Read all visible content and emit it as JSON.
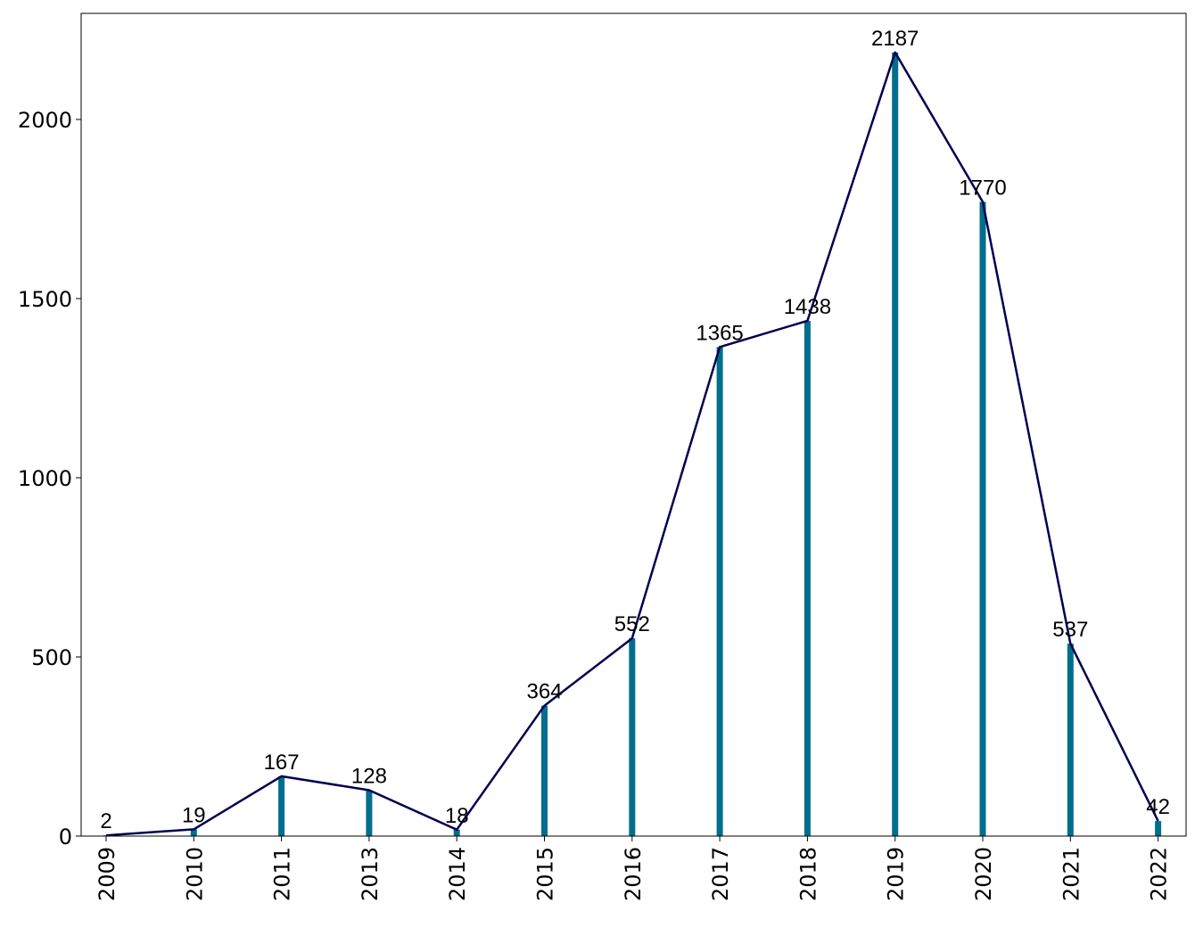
{
  "chart_data": {
    "type": "bar",
    "overlay": "line",
    "categories": [
      "2009",
      "2010",
      "2011",
      "2013",
      "2014",
      "2015",
      "2016",
      "2017",
      "2018",
      "2019",
      "2020",
      "2021",
      "2022"
    ],
    "values": [
      2,
      19,
      167,
      128,
      18,
      364,
      552,
      1365,
      1438,
      2187,
      1770,
      537,
      42
    ],
    "data_labels": [
      "2",
      "19",
      "167",
      "128",
      "18",
      "364",
      "552",
      "1365",
      "1438",
      "2187",
      "1770",
      "537",
      "42"
    ],
    "y_ticks": [
      0,
      500,
      1000,
      1500,
      2000
    ],
    "y_tick_labels": [
      "0",
      "500",
      "1000",
      "1500",
      "2000"
    ],
    "ylim": [
      0,
      2296
    ],
    "title": "",
    "xlabel": "",
    "ylabel": "",
    "grid": false,
    "bar_color": "#006e8c",
    "line_color": "#000050"
  }
}
